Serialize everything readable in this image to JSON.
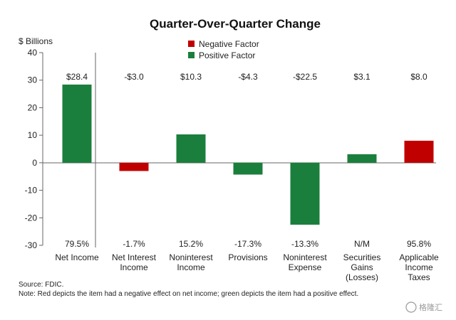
{
  "chart_data": {
    "type": "bar",
    "title": "Quarter-Over-Quarter Change",
    "ylabel": "$ Billions",
    "ylim": [
      -30,
      40
    ],
    "yticks": [
      40,
      30,
      20,
      10,
      0,
      -10,
      -20,
      -30
    ],
    "grid": false,
    "legend_position": "top-center",
    "legend": [
      {
        "label": "Negative Factor",
        "color": "#c00000"
      },
      {
        "label": "Positive Factor",
        "color": "#1a7f3c"
      }
    ],
    "categories": [
      [
        "Net Income"
      ],
      [
        "Net Interest",
        "Income"
      ],
      [
        "Noninterest",
        "Income"
      ],
      [
        "Provisions"
      ],
      [
        "Noninterest",
        "Expense"
      ],
      [
        "Securities",
        "Gains",
        "(Losses)"
      ],
      [
        "Applicable",
        "Income",
        "Taxes"
      ]
    ],
    "values": [
      28.4,
      -3.0,
      10.3,
      -4.3,
      -22.5,
      3.1,
      8.0
    ],
    "value_labels": [
      "$28.4",
      "-$3.0",
      "$10.3",
      "-$4.3",
      "-$22.5",
      "$3.1",
      "$8.0"
    ],
    "pct_labels": [
      "79.5%",
      "-1.7%",
      "15.2%",
      "-17.3%",
      "-13.3%",
      "N/M",
      "95.8%"
    ],
    "factor": [
      "positive",
      "negative",
      "positive",
      "positive",
      "positive",
      "positive",
      "negative"
    ]
  },
  "footnotes": {
    "source": "Source: FDIC.",
    "note": "Note: Red depicts the item had a negative effect on net income; green depicts the item had a positive effect."
  },
  "watermark": "格隆汇"
}
